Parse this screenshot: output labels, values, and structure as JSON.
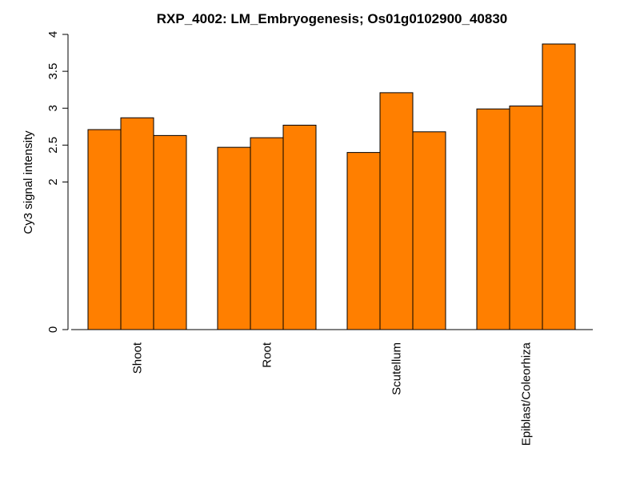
{
  "chart_data": {
    "type": "bar",
    "title": "RXP_4002: LM_Embryogenesis; Os01g0102900_40830",
    "ylabel": "Cy3 signal intensity",
    "xlabel": "",
    "ylim": [
      0,
      4
    ],
    "y_ticks": [
      0,
      2,
      2.5,
      3,
      3.5,
      4
    ],
    "y_tick_labels": [
      "0",
      "2",
      "2.5",
      "3",
      "3.5",
      "4"
    ],
    "groups": [
      {
        "label": "Shoot",
        "values": [
          2.71,
          2.87,
          2.63
        ]
      },
      {
        "label": "Root",
        "values": [
          2.47,
          2.6,
          2.77
        ]
      },
      {
        "label": "Scutellum",
        "values": [
          2.4,
          3.21,
          2.68
        ]
      },
      {
        "label": "Epiblast/Coleorhiza",
        "values": [
          2.99,
          3.03,
          3.87
        ]
      }
    ],
    "bar_color": "#ff7f00",
    "bar_stroke": "#000000",
    "grid": false,
    "legend": "none"
  }
}
